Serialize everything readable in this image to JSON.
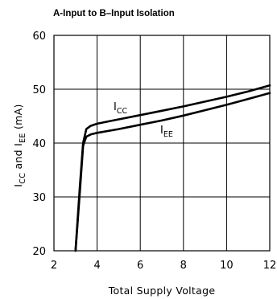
{
  "chart_data": {
    "type": "line",
    "title": "A-Input to B–Input Isolation",
    "xlabel": "Total Supply Voltage",
    "ylabel": {
      "prefix": "I",
      "sub1": "CC",
      "mid": " and I",
      "sub2": "EE",
      "suffix": " (mA)"
    },
    "xlim": [
      2,
      12
    ],
    "ylim": [
      20,
      60
    ],
    "xticks": [
      2,
      4,
      6,
      8,
      10,
      12
    ],
    "yticks": [
      20,
      30,
      40,
      50,
      60
    ],
    "grid": true,
    "series": [
      {
        "name": "ICC",
        "label": {
          "main": "I",
          "sub": "CC"
        },
        "x": [
          3.0,
          3.2,
          3.35,
          3.5,
          3.7,
          4.0,
          5.0,
          6.0,
          7.0,
          8.0,
          9.0,
          10.0,
          11.0,
          12.0
        ],
        "y": [
          20,
          32,
          40,
          42.6,
          43.2,
          43.6,
          44.4,
          45.2,
          46.0,
          46.8,
          47.7,
          48.6,
          49.6,
          50.7
        ]
      },
      {
        "name": "IEE",
        "label": {
          "main": "I",
          "sub": "EE"
        },
        "x": [
          3.0,
          3.2,
          3.35,
          3.5,
          3.7,
          4.0,
          5.0,
          6.0,
          7.0,
          8.0,
          9.0,
          10.0,
          11.0,
          12.0
        ],
        "y": [
          20,
          31,
          39.5,
          41.2,
          41.6,
          41.9,
          42.6,
          43.4,
          44.2,
          45.1,
          46.1,
          47.1,
          48.2,
          49.3
        ]
      }
    ]
  }
}
